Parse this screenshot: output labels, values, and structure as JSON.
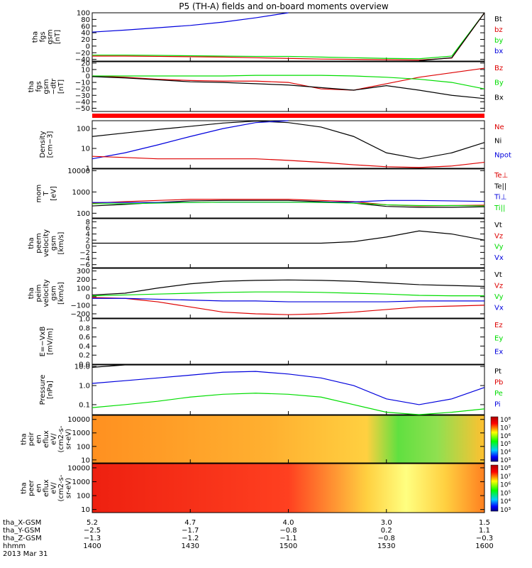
{
  "title": "P5 (TH-A) fields and on-board moments overview",
  "colors": {
    "black": "#000000",
    "red": "#dd0000",
    "green": "#00dd00",
    "blue": "#0000dd",
    "bar_red": "#ff0000"
  },
  "panels": [
    {
      "id": "fgs-gsm",
      "ylabel": [
        "tha",
        "fgs",
        "gsm",
        "[nT]"
      ],
      "yticks": [
        "100",
        "80",
        "60",
        "40",
        "20",
        "0",
        "−20",
        "−40"
      ],
      "legend": [
        {
          "text": "Bt",
          "color": "black"
        },
        {
          "text": "bz",
          "color": "red"
        },
        {
          "text": "by",
          "color": "green"
        },
        {
          "text": "bx",
          "color": "blue"
        }
      ]
    },
    {
      "id": "fgs-gsm-detrended",
      "ylabel": [
        "tha",
        "fgs",
        "gsm",
        "−dtr",
        "[nT]"
      ],
      "yticks": [
        "20",
        "10",
        "0",
        "−10",
        "−20",
        "−30",
        "−40",
        "−50"
      ],
      "legend": [
        {
          "text": "Bz",
          "color": "red"
        },
        {
          "text": "By",
          "color": "green"
        },
        {
          "text": "Bx",
          "color": "black"
        }
      ]
    },
    {
      "id": "density",
      "ylabel": [
        "Density",
        "[cm−3]"
      ],
      "yticks": [
        "100",
        "10",
        "1"
      ],
      "legend": [
        {
          "text": "Ne",
          "color": "red"
        },
        {
          "text": "Ni",
          "color": "black"
        },
        {
          "text": "Npot",
          "color": "blue"
        }
      ]
    },
    {
      "id": "temperature",
      "ylabel": [
        "mom",
        "T",
        "[eV]"
      ],
      "yticks": [
        "10000",
        "1000",
        "100"
      ],
      "legend": [
        {
          "text": "Te⊥",
          "color": "red"
        },
        {
          "text": "Te||",
          "color": "black"
        },
        {
          "text": "Ti⊥",
          "color": "blue"
        },
        {
          "text": "Ti||",
          "color": "green"
        }
      ]
    },
    {
      "id": "peem-velocity",
      "ylabel": [
        "tha",
        "peem",
        "velocity",
        "gsm",
        "[km/s]"
      ],
      "yticks": [
        "8",
        "6",
        "4",
        "2",
        "0",
        "−2",
        "−4",
        "−6"
      ],
      "legend": [
        {
          "text": "Vt",
          "color": "black"
        },
        {
          "text": "Vz",
          "color": "red"
        },
        {
          "text": "Vy",
          "color": "green"
        },
        {
          "text": "Vx",
          "color": "blue"
        }
      ]
    },
    {
      "id": "peim-velocity",
      "ylabel": [
        "tha",
        "peim",
        "velocity",
        "gsm",
        "[km/s]"
      ],
      "yticks": [
        "300",
        "200",
        "100",
        "0",
        "−100",
        "−200"
      ],
      "legend": [
        {
          "text": "Vt",
          "color": "black"
        },
        {
          "text": "Vz",
          "color": "red"
        },
        {
          "text": "Vy",
          "color": "green"
        },
        {
          "text": "Vx",
          "color": "blue"
        }
      ]
    },
    {
      "id": "e-vxb",
      "ylabel": [
        "E=−VxB",
        "[mV/m]"
      ],
      "yticks": [
        "1.0",
        "0.8",
        "0.6",
        "0.4",
        "0.2",
        "0.0"
      ],
      "legend": [
        {
          "text": "Ez",
          "color": "red"
        },
        {
          "text": "Ey",
          "color": "green"
        },
        {
          "text": "Ex",
          "color": "blue"
        }
      ]
    },
    {
      "id": "pressure",
      "ylabel": [
        "Pressure",
        "[nPa]"
      ],
      "yticks": [
        "10.0",
        "1.0",
        "0.1"
      ],
      "legend": [
        {
          "text": "Pt",
          "color": "black"
        },
        {
          "text": "Pb",
          "color": "red"
        },
        {
          "text": "Pe",
          "color": "green"
        },
        {
          "text": "Pi",
          "color": "blue"
        }
      ]
    },
    {
      "id": "peir-en-eflux",
      "ylabel": [
        "tha",
        "peir",
        "en",
        "eflux",
        "eV/",
        "(cm2-s-",
        "sr-eV)"
      ],
      "yticks": [
        "10000",
        "1000",
        "100",
        "10"
      ],
      "colorbar_ticks": [
        "10⁸",
        "10⁷",
        "10⁶",
        "10⁵",
        "10⁴",
        "10³"
      ]
    },
    {
      "id": "peer-en-eflux",
      "ylabel": [
        "tha",
        "peer",
        "en",
        "eflux",
        "eV/",
        "(cm2-s-",
        "sr-eV)"
      ],
      "yticks": [
        "10000",
        "1000",
        "100",
        "10"
      ],
      "colorbar_ticks": [
        "10⁸",
        "10⁷",
        "10⁶",
        "10⁵",
        "10⁴",
        "10³"
      ]
    }
  ],
  "x_axis": {
    "row_labels": [
      "tha_X-GSM",
      "tha_Y-GSM",
      "tha_Z-GSM",
      "hhmm",
      "2013 Mar 31"
    ],
    "columns": [
      {
        "x_gsm": "5.2",
        "y_gsm": "−2.5",
        "z_gsm": "−1.3",
        "hhmm": "1400"
      },
      {
        "x_gsm": "4.7",
        "y_gsm": "−1.7",
        "z_gsm": "−1.2",
        "hhmm": "1430"
      },
      {
        "x_gsm": "4.0",
        "y_gsm": "−0.8",
        "z_gsm": "−1.1",
        "hhmm": "1500"
      },
      {
        "x_gsm": "3.0",
        "y_gsm": "0.2",
        "z_gsm": "−0.8",
        "hhmm": "1530"
      },
      {
        "x_gsm": "1.5",
        "y_gsm": "1.1",
        "z_gsm": "−0.3",
        "hhmm": "1600"
      }
    ]
  },
  "chart_data": {
    "type": "line",
    "title": "P5 (TH-A) fields and on-board moments overview",
    "x": [
      1400,
      1410,
      1420,
      1430,
      1440,
      1450,
      1500,
      1510,
      1520,
      1530,
      1540,
      1550,
      1600
    ],
    "xlim": [
      1400,
      1600
    ],
    "xlabel": "hhmm",
    "series": [
      {
        "name": "bx",
        "panel": "fgs-gsm",
        "values": [
          42,
          48,
          55,
          62,
          72,
          85,
          100,
          null,
          null,
          null,
          null,
          null,
          null
        ]
      },
      {
        "name": "by",
        "panel": "fgs-gsm",
        "values": [
          -27,
          -27,
          -28,
          -29,
          -30,
          -31,
          -31,
          -33,
          -35,
          -37,
          -38,
          -30,
          105
        ]
      },
      {
        "name": "bz",
        "panel": "fgs-gsm",
        "values": [
          -30,
          -30,
          -31,
          -32,
          -33,
          -35,
          -37,
          -39,
          -40,
          -41,
          -42,
          -36,
          100
        ]
      },
      {
        "name": "Bt",
        "panel": "fgs-gsm",
        "values": [
          null,
          null,
          null,
          null,
          null,
          null,
          null,
          null,
          null,
          null,
          -44,
          -35,
          105
        ]
      },
      {
        "name": "Bz",
        "panel": "fgs-gsm-detrended",
        "values": [
          0,
          -2,
          -5,
          -7,
          -8,
          -8,
          -10,
          -20,
          -22,
          -12,
          -2,
          5,
          12
        ]
      },
      {
        "name": "By",
        "panel": "fgs-gsm-detrended",
        "values": [
          0,
          0,
          0,
          0,
          0,
          1,
          1,
          1,
          0,
          -2,
          -5,
          -10,
          -20
        ]
      },
      {
        "name": "Bx",
        "panel": "fgs-gsm-detrended",
        "values": [
          -1,
          -3,
          -6,
          -9,
          -10,
          -12,
          -14,
          -18,
          -22,
          -15,
          -22,
          -30,
          -35
        ]
      },
      {
        "name": "Ni",
        "panel": "density",
        "values": [
          40,
          60,
          90,
          130,
          190,
          240,
          200,
          120,
          40,
          6,
          3,
          6,
          20
        ]
      },
      {
        "name": "Npot",
        "panel": "density",
        "values": [
          3,
          6,
          15,
          40,
          100,
          200,
          250,
          null,
          null,
          null,
          null,
          null,
          null
        ]
      },
      {
        "name": "Ne",
        "panel": "density",
        "values": [
          4,
          3.5,
          3,
          3,
          3,
          3,
          2.5,
          2,
          1.5,
          1.2,
          1.1,
          1.3,
          2
        ]
      },
      {
        "name": "Te⊥",
        "panel": "temperature",
        "values": [
          300,
          350,
          400,
          450,
          450,
          450,
          450,
          400,
          350,
          250,
          220,
          230,
          240
        ]
      },
      {
        "name": "Te||",
        "panel": "temperature",
        "values": [
          220,
          260,
          320,
          380,
          400,
          400,
          400,
          350,
          300,
          210,
          190,
          190,
          200
        ]
      },
      {
        "name": "Ti⊥",
        "panel": "temperature",
        "values": [
          320,
          320,
          320,
          320,
          330,
          330,
          330,
          330,
          340,
          400,
          400,
          380,
          360
        ]
      },
      {
        "name": "Ti||",
        "panel": "temperature",
        "values": [
          280,
          280,
          300,
          320,
          330,
          330,
          330,
          320,
          300,
          250,
          230,
          230,
          220
        ]
      },
      {
        "name": "Vt",
        "panel": "peem-velocity",
        "values": [
          1,
          1,
          1,
          1,
          1,
          1,
          1,
          1,
          1.5,
          3,
          5,
          4,
          2
        ]
      },
      {
        "name": "Vt",
        "panel": "peim-velocity",
        "values": [
          20,
          40,
          100,
          150,
          180,
          190,
          195,
          190,
          180,
          160,
          140,
          130,
          120
        ]
      },
      {
        "name": "Vz",
        "panel": "peim-velocity",
        "values": [
          -10,
          -20,
          -60,
          -120,
          -180,
          -200,
          -210,
          -200,
          -180,
          -150,
          -120,
          -110,
          -100
        ]
      },
      {
        "name": "Vy",
        "panel": "peim-velocity",
        "values": [
          10,
          20,
          30,
          40,
          50,
          55,
          55,
          50,
          40,
          30,
          15,
          10,
          10
        ]
      },
      {
        "name": "Vx",
        "panel": "peim-velocity",
        "values": [
          -20,
          -20,
          -30,
          -40,
          -50,
          -50,
          -60,
          -60,
          -60,
          -60,
          -50,
          -50,
          -50
        ]
      },
      {
        "name": "Pt",
        "panel": "pressure",
        "values": [
          9,
          13,
          19,
          27,
          40,
          55,
          70,
          null,
          null,
          null,
          null,
          null,
          null
        ]
      },
      {
        "name": "Pi",
        "panel": "pressure",
        "values": [
          1.3,
          1.8,
          2.5,
          3.5,
          5,
          5.5,
          4,
          2.5,
          1,
          0.2,
          0.1,
          0.2,
          0.8
        ]
      },
      {
        "name": "Pe",
        "panel": "pressure",
        "values": [
          0.07,
          0.1,
          0.15,
          0.25,
          0.35,
          0.4,
          0.35,
          0.25,
          0.1,
          0.04,
          0.03,
          0.04,
          0.06
        ]
      }
    ]
  }
}
